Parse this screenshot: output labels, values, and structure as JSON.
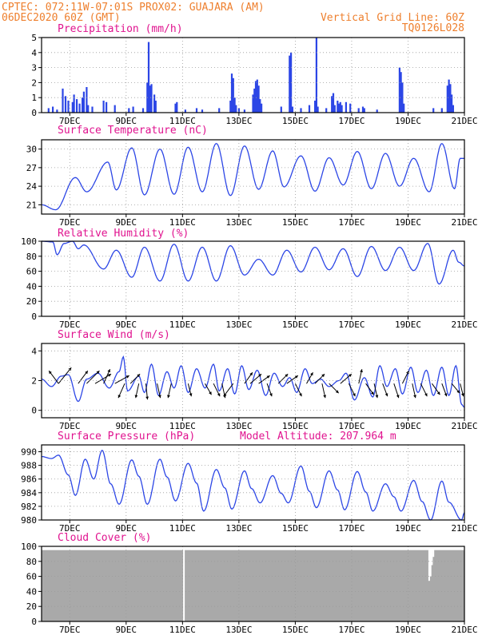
{
  "header": {
    "line1": "CPTEC:   072:11W-07:01S   PROX02: GUAJARA (AM)",
    "line2": "06DEC2020 60Z (GMT)",
    "grid_note": "Vertical Grid Line: 60Z",
    "code": "TQ0126L028"
  },
  "colors": {
    "header": "#ee7f2d",
    "panel_title": "#e0138f",
    "series": "#2c46e6",
    "cloud": "#a9a9a9",
    "grid": "#9a9a9a"
  },
  "x_labels": [
    "7DEC",
    "9DEC",
    "11DEC",
    "13DEC",
    "15DEC",
    "17DEC",
    "19DEC",
    "21DEC"
  ],
  "chart_data": [
    {
      "type": "bar",
      "title": "Precipitation (mm/h)",
      "ylim": [
        0,
        5
      ],
      "yticks": [
        0,
        1,
        2,
        3,
        4,
        5
      ],
      "x_range_days": [
        6.0,
        21.0
      ],
      "events": [
        [
          6.25,
          0.3
        ],
        [
          6.4,
          0.4
        ],
        [
          6.55,
          0.2
        ],
        [
          6.75,
          1.6
        ],
        [
          6.85,
          1.1
        ],
        [
          6.95,
          0.8
        ],
        [
          7.1,
          0.7
        ],
        [
          7.15,
          1.2
        ],
        [
          7.25,
          0.9
        ],
        [
          7.35,
          0.6
        ],
        [
          7.45,
          1.0
        ],
        [
          7.5,
          1.4
        ],
        [
          7.6,
          1.7
        ],
        [
          7.65,
          0.5
        ],
        [
          7.8,
          0.4
        ],
        [
          8.2,
          0.8
        ],
        [
          8.3,
          0.7
        ],
        [
          8.6,
          0.5
        ],
        [
          9.1,
          0.3
        ],
        [
          9.25,
          0.4
        ],
        [
          9.6,
          0.3
        ],
        [
          9.75,
          2.0
        ],
        [
          9.8,
          4.7
        ],
        [
          9.85,
          1.8
        ],
        [
          9.9,
          1.9
        ],
        [
          10.0,
          1.2
        ],
        [
          10.05,
          0.8
        ],
        [
          10.75,
          0.6
        ],
        [
          10.8,
          0.7
        ],
        [
          11.1,
          0.2
        ],
        [
          11.5,
          0.3
        ],
        [
          11.7,
          0.2
        ],
        [
          12.3,
          0.3
        ],
        [
          12.7,
          0.8
        ],
        [
          12.75,
          2.6
        ],
        [
          12.8,
          2.3
        ],
        [
          12.85,
          1.0
        ],
        [
          12.9,
          0.5
        ],
        [
          13.0,
          0.3
        ],
        [
          13.2,
          0.2
        ],
        [
          13.5,
          1.2
        ],
        [
          13.55,
          1.6
        ],
        [
          13.6,
          2.1
        ],
        [
          13.65,
          2.2
        ],
        [
          13.7,
          1.8
        ],
        [
          13.75,
          0.9
        ],
        [
          13.8,
          0.6
        ],
        [
          14.5,
          0.4
        ],
        [
          14.8,
          3.8
        ],
        [
          14.85,
          4.0
        ],
        [
          14.9,
          0.4
        ],
        [
          15.2,
          0.3
        ],
        [
          15.5,
          0.5
        ],
        [
          15.7,
          0.8
        ],
        [
          15.75,
          5.0
        ],
        [
          15.8,
          0.4
        ],
        [
          16.1,
          0.3
        ],
        [
          16.3,
          1.1
        ],
        [
          16.35,
          1.3
        ],
        [
          16.4,
          0.5
        ],
        [
          16.5,
          0.8
        ],
        [
          16.55,
          0.6
        ],
        [
          16.6,
          0.7
        ],
        [
          16.65,
          0.5
        ],
        [
          16.8,
          0.7
        ],
        [
          16.95,
          0.6
        ],
        [
          17.25,
          0.3
        ],
        [
          17.4,
          0.4
        ],
        [
          17.45,
          0.3
        ],
        [
          17.9,
          0.2
        ],
        [
          18.7,
          3.0
        ],
        [
          18.75,
          2.7
        ],
        [
          18.8,
          2.0
        ],
        [
          18.85,
          0.6
        ],
        [
          19.9,
          0.3
        ],
        [
          20.2,
          0.3
        ],
        [
          20.4,
          1.8
        ],
        [
          20.45,
          2.2
        ],
        [
          20.5,
          1.9
        ],
        [
          20.55,
          1.2
        ],
        [
          20.6,
          0.5
        ]
      ]
    },
    {
      "type": "line",
      "title": "Surface Temperature (nC)",
      "ylim": [
        19.5,
        31.5
      ],
      "yticks": [
        21,
        24,
        27,
        30
      ],
      "x_range_days": [
        6.0,
        21.0
      ],
      "extremes": [
        [
          6.0,
          21.0
        ],
        [
          6.5,
          20.2
        ],
        [
          7.2,
          25.4
        ],
        [
          7.6,
          23.1
        ],
        [
          8.35,
          27.9
        ],
        [
          8.65,
          23.4
        ],
        [
          9.2,
          30.2
        ],
        [
          9.65,
          22.6
        ],
        [
          10.2,
          30.0
        ],
        [
          10.7,
          22.7
        ],
        [
          11.2,
          30.3
        ],
        [
          11.7,
          23.1
        ],
        [
          12.2,
          30.9
        ],
        [
          12.7,
          22.5
        ],
        [
          13.2,
          30.5
        ],
        [
          13.7,
          23.5
        ],
        [
          14.2,
          29.7
        ],
        [
          14.6,
          23.9
        ],
        [
          15.2,
          28.9
        ],
        [
          15.7,
          23.2
        ],
        [
          16.2,
          28.6
        ],
        [
          16.7,
          24.2
        ],
        [
          17.2,
          29.6
        ],
        [
          17.7,
          23.6
        ],
        [
          18.2,
          29.3
        ],
        [
          18.7,
          24.0
        ],
        [
          19.2,
          28.5
        ],
        [
          19.75,
          23.1
        ],
        [
          20.2,
          30.9
        ],
        [
          20.65,
          23.6
        ],
        [
          20.85,
          28.5
        ],
        [
          21.0,
          28.5
        ]
      ]
    },
    {
      "type": "line",
      "title": "Relative Humidity (%)",
      "ylim": [
        0,
        100
      ],
      "yticks": [
        0,
        20,
        40,
        60,
        80,
        100
      ],
      "x_range_days": [
        6.0,
        21.0
      ],
      "extremes": [
        [
          6.0,
          100
        ],
        [
          6.4,
          99
        ],
        [
          6.55,
          82
        ],
        [
          6.8,
          97
        ],
        [
          7.1,
          100
        ],
        [
          7.3,
          90
        ],
        [
          7.5,
          95
        ],
        [
          8.2,
          63
        ],
        [
          8.65,
          88
        ],
        [
          9.2,
          52
        ],
        [
          9.65,
          92
        ],
        [
          10.2,
          47
        ],
        [
          10.7,
          96
        ],
        [
          11.2,
          47
        ],
        [
          11.7,
          92
        ],
        [
          12.2,
          47
        ],
        [
          12.7,
          94
        ],
        [
          13.2,
          55
        ],
        [
          13.7,
          76
        ],
        [
          14.2,
          55
        ],
        [
          14.7,
          88
        ],
        [
          15.2,
          59
        ],
        [
          15.7,
          92
        ],
        [
          16.2,
          62
        ],
        [
          16.7,
          90
        ],
        [
          17.2,
          53
        ],
        [
          17.7,
          93
        ],
        [
          18.2,
          61
        ],
        [
          18.7,
          92
        ],
        [
          19.2,
          61
        ],
        [
          19.7,
          97
        ],
        [
          20.1,
          43
        ],
        [
          20.6,
          88
        ],
        [
          20.8,
          72
        ],
        [
          21.0,
          67
        ]
      ]
    },
    {
      "type": "line",
      "title": "Surface Wind (m/s)",
      "ylim": [
        -0.5,
        4.5
      ],
      "yticks": [
        0,
        2,
        4
      ],
      "x_range_days": [
        6.0,
        21.0
      ],
      "extremes": [
        [
          6.0,
          2.1
        ],
        [
          6.35,
          1.6
        ],
        [
          6.7,
          2.3
        ],
        [
          6.95,
          2.4
        ],
        [
          7.3,
          0.6
        ],
        [
          7.6,
          2.1
        ],
        [
          8.0,
          2.5
        ],
        [
          8.4,
          1.5
        ],
        [
          8.75,
          2.6
        ],
        [
          8.9,
          3.6
        ],
        [
          9.05,
          1.3
        ],
        [
          9.45,
          2.3
        ],
        [
          9.65,
          1.2
        ],
        [
          9.9,
          3.1
        ],
        [
          10.15,
          1.0
        ],
        [
          10.45,
          2.6
        ],
        [
          10.7,
          1.5
        ],
        [
          10.95,
          3.0
        ],
        [
          11.2,
          1.2
        ],
        [
          11.5,
          2.8
        ],
        [
          11.8,
          1.5
        ],
        [
          12.1,
          3.1
        ],
        [
          12.3,
          1.3
        ],
        [
          12.6,
          2.8
        ],
        [
          12.85,
          1.1
        ],
        [
          13.1,
          3.0
        ],
        [
          13.35,
          1.4
        ],
        [
          13.65,
          2.7
        ],
        [
          13.95,
          1.0
        ],
        [
          14.25,
          2.5
        ],
        [
          14.55,
          1.6
        ],
        [
          14.8,
          2.2
        ],
        [
          15.05,
          1.2
        ],
        [
          15.35,
          2.8
        ],
        [
          15.6,
          1.8
        ],
        [
          15.9,
          2.1
        ],
        [
          16.2,
          1.6
        ],
        [
          16.55,
          2.0
        ],
        [
          16.8,
          2.5
        ],
        [
          17.1,
          0.7
        ],
        [
          17.45,
          2.2
        ],
        [
          17.75,
          0.9
        ],
        [
          18.0,
          3.0
        ],
        [
          18.25,
          1.6
        ],
        [
          18.55,
          2.8
        ],
        [
          18.8,
          1.1
        ],
        [
          19.1,
          2.9
        ],
        [
          19.35,
          1.2
        ],
        [
          19.65,
          2.7
        ],
        [
          19.9,
          1.0
        ],
        [
          20.2,
          2.9
        ],
        [
          20.45,
          1.0
        ],
        [
          20.7,
          3.0
        ],
        [
          20.9,
          0.4
        ],
        [
          21.0,
          0.2
        ]
      ],
      "barbs": [
        [
          6.6,
          0.4,
          0.5
        ],
        [
          6.6,
          -0.3,
          0.4
        ],
        [
          7.3,
          0.3,
          0.4
        ],
        [
          7.6,
          0.4,
          0.4
        ],
        [
          7.9,
          0.5,
          0.3
        ],
        [
          8.2,
          0.2,
          0.45
        ],
        [
          8.6,
          0.45,
          0.25
        ],
        [
          8.95,
          -0.2,
          -0.45
        ],
        [
          9.15,
          0.3,
          0.3
        ],
        [
          9.45,
          -0.1,
          -0.45
        ],
        [
          9.7,
          0.05,
          -0.5
        ],
        [
          10.1,
          0.1,
          -0.45
        ],
        [
          10.6,
          -0.1,
          -0.45
        ],
        [
          11.2,
          0.1,
          -0.4
        ],
        [
          11.8,
          0.2,
          -0.35
        ],
        [
          12.1,
          0.2,
          -0.4
        ],
        [
          12.4,
          0.1,
          -0.45
        ],
        [
          12.8,
          -0.3,
          -0.4
        ],
        [
          13.2,
          0.25,
          0.35
        ],
        [
          13.4,
          0.35,
          0.3
        ],
        [
          13.7,
          0.35,
          0.25
        ],
        [
          14.0,
          0.15,
          -0.4
        ],
        [
          14.4,
          0.3,
          0.3
        ],
        [
          14.7,
          0.35,
          0.25
        ],
        [
          15.0,
          0.2,
          -0.4
        ],
        [
          15.4,
          0.2,
          0.35
        ],
        [
          15.7,
          0.3,
          0.3
        ],
        [
          15.95,
          0.1,
          -0.45
        ],
        [
          16.2,
          0.3,
          -0.3
        ],
        [
          16.6,
          0.35,
          0.3
        ],
        [
          16.9,
          0.2,
          -0.4
        ],
        [
          17.25,
          0.1,
          0.45
        ],
        [
          17.5,
          0.25,
          -0.35
        ],
        [
          17.8,
          0.1,
          -0.45
        ],
        [
          18.1,
          0.15,
          -0.4
        ],
        [
          18.5,
          0.15,
          -0.45
        ],
        [
          18.8,
          0.2,
          0.4
        ],
        [
          19.15,
          0.1,
          -0.45
        ],
        [
          19.45,
          0.2,
          -0.4
        ],
        [
          19.85,
          0.25,
          -0.35
        ],
        [
          20.2,
          0.15,
          -0.4
        ],
        [
          20.55,
          0.25,
          -0.3
        ],
        [
          20.85,
          0.1,
          -0.4
        ]
      ]
    },
    {
      "type": "line",
      "title": "Surface Pressure (hPa)",
      "annotation": "Model Altitude: 207.964 m",
      "ylim": [
        980,
        991
      ],
      "yticks": [
        980,
        982,
        984,
        986,
        988,
        990
      ],
      "x_range_days": [
        6.0,
        21.0
      ],
      "extremes": [
        [
          6.0,
          989.3
        ],
        [
          6.35,
          989.0
        ],
        [
          6.6,
          989.5
        ],
        [
          6.95,
          986.6
        ],
        [
          7.2,
          983.6
        ],
        [
          7.55,
          988.9
        ],
        [
          7.85,
          986.0
        ],
        [
          8.15,
          990.2
        ],
        [
          8.45,
          985.3
        ],
        [
          8.75,
          982.3
        ],
        [
          9.2,
          988.8
        ],
        [
          9.45,
          986.4
        ],
        [
          9.75,
          982.3
        ],
        [
          10.2,
          988.9
        ],
        [
          10.45,
          986.3
        ],
        [
          10.75,
          982.8
        ],
        [
          11.2,
          988.3
        ],
        [
          11.5,
          985.4
        ],
        [
          11.75,
          981.3
        ],
        [
          12.2,
          987.4
        ],
        [
          12.5,
          984.7
        ],
        [
          12.75,
          981.6
        ],
        [
          13.2,
          987.2
        ],
        [
          13.45,
          984.6
        ],
        [
          13.75,
          982.5
        ],
        [
          14.2,
          986.5
        ],
        [
          14.5,
          983.9
        ],
        [
          14.75,
          982.5
        ],
        [
          15.2,
          987.9
        ],
        [
          15.5,
          984.2
        ],
        [
          15.75,
          981.8
        ],
        [
          16.2,
          987.2
        ],
        [
          16.5,
          984.4
        ],
        [
          16.75,
          981.5
        ],
        [
          17.2,
          987.1
        ],
        [
          17.5,
          984.1
        ],
        [
          17.75,
          981.3
        ],
        [
          18.2,
          985.3
        ],
        [
          18.5,
          983.4
        ],
        [
          18.75,
          981.3
        ],
        [
          19.2,
          985.8
        ],
        [
          19.5,
          982.7
        ],
        [
          19.8,
          980.0
        ],
        [
          20.2,
          985.7
        ],
        [
          20.45,
          982.6
        ],
        [
          20.9,
          980.0
        ],
        [
          21.0,
          981.1
        ]
      ]
    },
    {
      "type": "bar",
      "title": "Cloud Cover (%)",
      "ylim": [
        0,
        100
      ],
      "yticks": [
        0,
        20,
        40,
        60,
        80,
        100
      ],
      "x_range_days": [
        6.0,
        21.0
      ],
      "base_value": 95,
      "dips": [
        [
          11.0,
          96
        ],
        [
          11.05,
          0
        ],
        [
          11.1,
          96
        ],
        [
          19.75,
          54
        ],
        [
          19.8,
          60
        ],
        [
          19.85,
          75
        ],
        [
          19.9,
          86
        ]
      ]
    }
  ]
}
